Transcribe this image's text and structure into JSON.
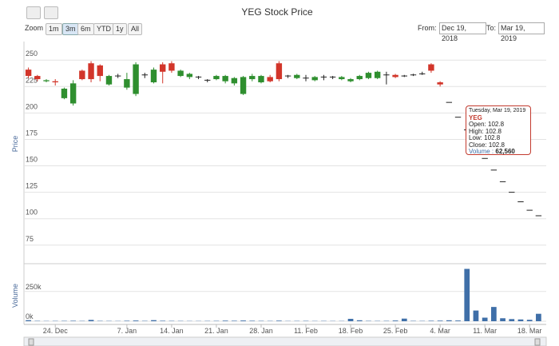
{
  "chart_data": {
    "type": "candlestick",
    "title": "YEG Stock Price",
    "y_title": "Price",
    "y2_title": "Volume",
    "categories": [
      null,
      null,
      null,
      "24. Dec",
      null,
      null,
      null,
      null,
      null,
      null,
      null,
      "7. Jan",
      null,
      null,
      null,
      null,
      "14. Jan",
      null,
      null,
      null,
      null,
      "21. Jan",
      null,
      null,
      null,
      null,
      "28. Jan",
      null,
      null,
      null,
      null,
      "11. Feb",
      null,
      null,
      null,
      null,
      "18. Feb",
      null,
      null,
      null,
      null,
      "25. Feb",
      null,
      null,
      null,
      null,
      "4. Mar",
      null,
      null,
      null,
      null,
      "11. Mar",
      null,
      null,
      null,
      null,
      "18. Mar",
      null
    ],
    "open": [
      235,
      232,
      231,
      229,
      223,
      228,
      232,
      232,
      235,
      235,
      235,
      232,
      246,
      236,
      241,
      239,
      240,
      240,
      237,
      234,
      231,
      235,
      235,
      233,
      234,
      235,
      235,
      230,
      232,
      235,
      236,
      233,
      234,
      234,
      234,
      234,
      232,
      235,
      238,
      239,
      236,
      234,
      235,
      236,
      237,
      240,
      227,
      210,
      196,
      184,
      170,
      157,
      146,
      135,
      125,
      116,
      108,
      102.8
    ],
    "high": [
      243,
      236,
      232,
      232,
      224,
      231,
      241,
      249,
      246,
      236,
      237,
      238,
      248,
      238,
      243,
      248,
      249,
      241,
      238,
      235,
      232,
      236,
      236,
      234,
      235,
      237,
      236,
      236,
      249,
      236,
      237,
      236,
      235,
      236,
      235,
      235,
      233,
      236,
      239,
      240,
      239,
      237,
      236,
      237,
      239,
      247,
      230,
      210,
      196,
      184,
      170,
      157,
      146,
      135,
      125,
      116,
      108,
      102.8
    ],
    "low": [
      233,
      230,
      229,
      226,
      213,
      207,
      231,
      229,
      230,
      226,
      233,
      222,
      216,
      233,
      228,
      228,
      238,
      234,
      232,
      232,
      229,
      231,
      228,
      226,
      217,
      230,
      228,
      229,
      230,
      233,
      232,
      230,
      230,
      231,
      232,
      231,
      229,
      231,
      232,
      232,
      227,
      233,
      234,
      235,
      236,
      238,
      225,
      210,
      196,
      184,
      170,
      157,
      146,
      135,
      125,
      116,
      108,
      102.8
    ],
    "close": [
      241,
      235,
      230,
      230,
      214,
      209,
      240,
      247,
      245,
      227,
      235,
      224,
      218,
      236,
      229,
      246,
      247,
      235,
      234,
      234,
      231,
      232,
      230,
      228,
      218,
      232,
      229,
      234,
      247,
      235,
      233,
      233,
      231,
      234,
      234,
      232,
      230,
      232,
      233,
      233,
      236,
      236,
      235,
      236,
      237,
      246,
      229,
      210,
      196,
      184,
      170,
      157,
      146,
      135,
      125,
      116,
      108,
      102.8
    ],
    "volume": [
      9000,
      3000,
      2000,
      2500,
      3000,
      4000,
      2500,
      11000,
      3000,
      2500,
      2000,
      4000,
      6000,
      3000,
      9000,
      4000,
      3000,
      2500,
      2000,
      2000,
      2500,
      3000,
      5000,
      4000,
      6000,
      4000,
      3000,
      2500,
      5000,
      2000,
      2500,
      3000,
      2000,
      2500,
      2000,
      2000,
      20000,
      8000,
      3000,
      2500,
      3000,
      6000,
      22000,
      3000,
      2500,
      4000,
      5000,
      8000,
      6000,
      440000,
      90000,
      30000,
      120000,
      25000,
      18000,
      15000,
      12000,
      62560
    ],
    "ylim": [
      65,
      260
    ],
    "yticks": [
      75,
      100,
      125,
      150,
      175,
      200,
      225,
      250
    ],
    "y2lim": [
      0,
      450000
    ],
    "y2ticks": [
      {
        "value": 0,
        "label": "0k"
      },
      {
        "value": 250000,
        "label": "250k"
      }
    ],
    "up_color": "#d2352a",
    "down_color": "#2f8f2f",
    "flat_color": "#222222",
    "volume_color": "#3f6fa8",
    "grid": true
  },
  "ui": {
    "zoom_label": "Zoom",
    "zoom_buttons": [
      "1m",
      "3m",
      "6m",
      "YTD",
      "1y",
      "All"
    ],
    "zoom_selected": 1,
    "from_label": "From:",
    "from_value": "Dec 19, 2018",
    "to_label": "To:",
    "to_value": "Mar 19, 2019",
    "tooltip": {
      "date": "Tuesday, Mar 19, 2019",
      "series": "YEG",
      "lines": [
        "Open: 102.8",
        "High: 102.8",
        "Low: 102.8",
        "Close: 102.8"
      ],
      "volume_label": "Volume :",
      "volume_value": "62,560"
    }
  }
}
